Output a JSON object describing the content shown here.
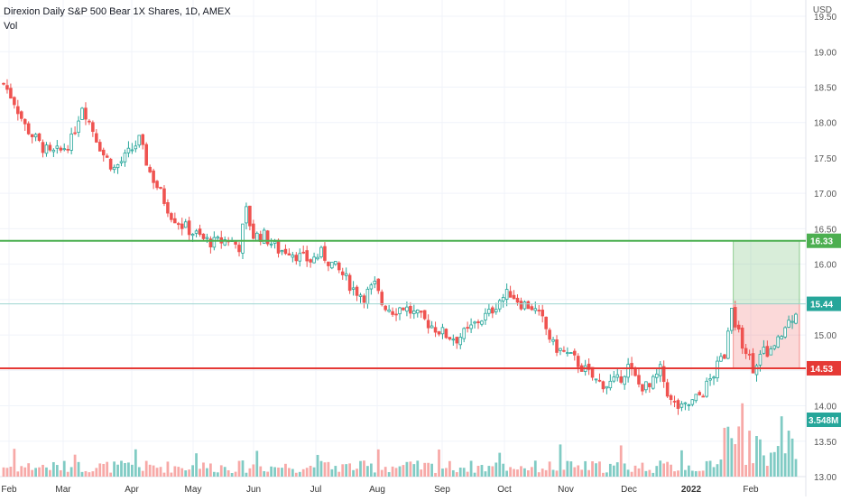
{
  "header": {
    "title": "Direxion Daily S&P 500 Bear 1X Shares, 1D, AMEX",
    "volume_label": "Vol",
    "currency": "USD"
  },
  "chart_data": {
    "type": "candlestick",
    "title": "Direxion Daily S&P 500 Bear 1X Shares, 1D, AMEX",
    "currency": "USD",
    "y_ticks": [
      "19.50",
      "19.00",
      "18.50",
      "18.00",
      "17.50",
      "17.00",
      "16.50",
      "16.00",
      "15.50",
      "15.00",
      "14.50",
      "14.00",
      "13.50",
      "13.00"
    ],
    "x_ticks": [
      "Feb",
      "Mar",
      "Apr",
      "May",
      "Jun",
      "Jul",
      "Aug",
      "Sep",
      "Oct",
      "Nov",
      "Dec",
      "2022",
      "Feb"
    ],
    "ylim": [
      13.0,
      19.73
    ],
    "grid": true,
    "colors": {
      "up": "#26a69a",
      "down": "#ef5350",
      "vol_up": "#80cbc4",
      "vol_down": "#f7a9a7",
      "green_line": "#4caf50",
      "red_line": "#e53935",
      "last_line": "#9ed6d0"
    },
    "price_path": [
      [
        0,
        18.55
      ],
      [
        3,
        18.3
      ],
      [
        6,
        17.95
      ],
      [
        10,
        17.7
      ],
      [
        13,
        17.55
      ],
      [
        16,
        17.6
      ],
      [
        19,
        17.75
      ],
      [
        22,
        18.25
      ],
      [
        25,
        17.9
      ],
      [
        28,
        17.55
      ],
      [
        31,
        17.35
      ],
      [
        34,
        17.5
      ],
      [
        38,
        17.75
      ],
      [
        41,
        17.3
      ],
      [
        44,
        17.0
      ],
      [
        47,
        16.7
      ],
      [
        50,
        16.55
      ],
      [
        53,
        16.45
      ],
      [
        56,
        16.35
      ],
      [
        59,
        16.3
      ],
      [
        63,
        16.35
      ],
      [
        66,
        16.25
      ],
      [
        68,
        16.75
      ],
      [
        70,
        16.4
      ],
      [
        73,
        16.4
      ],
      [
        77,
        16.2
      ],
      [
        80,
        16.2
      ],
      [
        83,
        16.1
      ],
      [
        86,
        16.05
      ],
      [
        89,
        16.15
      ],
      [
        92,
        16.0
      ],
      [
        95,
        15.85
      ],
      [
        98,
        15.65
      ],
      [
        101,
        15.55
      ],
      [
        104,
        15.7
      ],
      [
        106,
        15.45
      ],
      [
        109,
        15.35
      ],
      [
        112,
        15.4
      ],
      [
        115,
        15.3
      ],
      [
        118,
        15.2
      ],
      [
        121,
        15.1
      ],
      [
        124,
        15.0
      ],
      [
        127,
        14.95
      ],
      [
        130,
        15.05
      ],
      [
        133,
        15.2
      ],
      [
        136,
        15.3
      ],
      [
        139,
        15.5
      ],
      [
        142,
        15.6
      ],
      [
        145,
        15.45
      ],
      [
        148,
        15.4
      ],
      [
        151,
        15.2
      ],
      [
        154,
        14.85
      ],
      [
        157,
        14.75
      ],
      [
        160,
        14.65
      ],
      [
        163,
        14.5
      ],
      [
        166,
        14.35
      ],
      [
        169,
        14.3
      ],
      [
        172,
        14.35
      ],
      [
        175,
        14.55
      ],
      [
        178,
        14.3
      ],
      [
        181,
        14.25
      ],
      [
        184,
        14.5
      ],
      [
        187,
        14.05
      ],
      [
        190,
        13.95
      ],
      [
        193,
        14.05
      ],
      [
        196,
        14.2
      ],
      [
        199,
        14.45
      ],
      [
        202,
        14.75
      ],
      [
        204,
        15.3
      ],
      [
        207,
        14.9
      ],
      [
        210,
        14.55
      ],
      [
        213,
        14.75
      ],
      [
        216,
        14.8
      ],
      [
        219,
        15.1
      ],
      [
        222,
        15.35
      ]
    ],
    "last_date_index": 222,
    "levels": [
      {
        "label": "16.33",
        "value": 16.33,
        "color": "#4caf50"
      },
      {
        "label": "15.44",
        "value": 15.44,
        "color": "#26a69a"
      },
      {
        "label": "14.53",
        "value": 14.53,
        "color": "#e53935"
      }
    ],
    "volume_label": "3.548M",
    "position_box": {
      "entry": 15.44,
      "target": 16.33,
      "stop": 14.53,
      "start_index": 205,
      "end_index": 222
    }
  }
}
